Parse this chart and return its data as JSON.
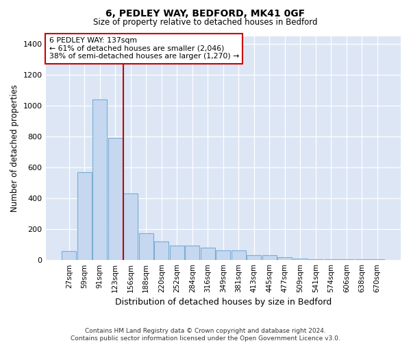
{
  "title_line1": "6, PEDLEY WAY, BEDFORD, MK41 0GF",
  "title_line2": "Size of property relative to detached houses in Bedford",
  "xlabel": "Distribution of detached houses by size in Bedford",
  "ylabel": "Number of detached properties",
  "footnote": "Contains HM Land Registry data © Crown copyright and database right 2024.\nContains public sector information licensed under the Open Government Licence v3.0.",
  "bar_color": "#c5d8f0",
  "bar_edge_color": "#7aadd4",
  "background_color": "#dce6f5",
  "annotation_box_color": "#ffffff",
  "annotation_border_color": "#cc0000",
  "vline_color": "#cc0000",
  "annotation_text_line1": "6 PEDLEY WAY: 137sqm",
  "annotation_text_line2": "← 61% of detached houses are smaller (2,046)",
  "annotation_text_line3": "38% of semi-detached houses are larger (1,270) →",
  "categories": [
    "27sqm",
    "59sqm",
    "91sqm",
    "123sqm",
    "156sqm",
    "188sqm",
    "220sqm",
    "252sqm",
    "284sqm",
    "316sqm",
    "349sqm",
    "381sqm",
    "413sqm",
    "445sqm",
    "477sqm",
    "509sqm",
    "541sqm",
    "574sqm",
    "606sqm",
    "638sqm",
    "670sqm"
  ],
  "values": [
    57,
    570,
    1040,
    790,
    430,
    175,
    120,
    95,
    95,
    80,
    65,
    65,
    30,
    30,
    20,
    10,
    5,
    5,
    5,
    5,
    5
  ],
  "vline_x": 3.5,
  "ylim": [
    0,
    1450
  ],
  "yticks": [
    0,
    200,
    400,
    600,
    800,
    1000,
    1200,
    1400
  ]
}
